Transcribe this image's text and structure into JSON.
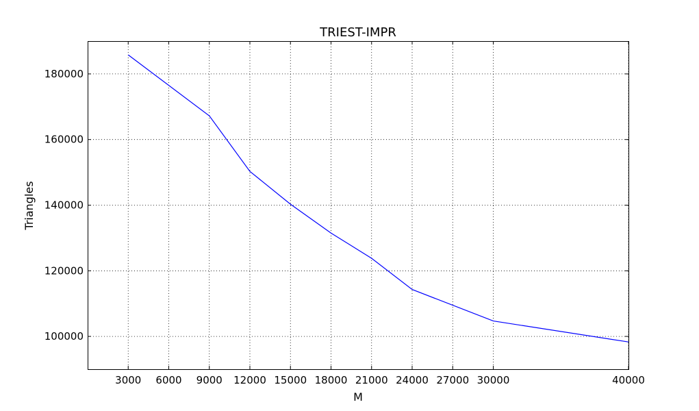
{
  "chart_data": {
    "type": "line",
    "title": "TRIEST-IMPR",
    "xlabel": "M",
    "ylabel": "Triangles",
    "xlim": [
      0,
      40000
    ],
    "ylim": [
      90000,
      190000
    ],
    "x_ticks": [
      3000,
      6000,
      9000,
      12000,
      15000,
      18000,
      21000,
      24000,
      27000,
      30000,
      40000
    ],
    "y_ticks": [
      100000,
      120000,
      140000,
      160000,
      180000
    ],
    "grid": true,
    "series": [
      {
        "color": "#0000ff",
        "x": [
          3000,
          9000,
          12000,
          15000,
          18000,
          21000,
          24000,
          30000,
          40000
        ],
        "y": [
          185800,
          167200,
          150300,
          140300,
          131500,
          123800,
          114300,
          104700,
          98300
        ]
      }
    ]
  }
}
